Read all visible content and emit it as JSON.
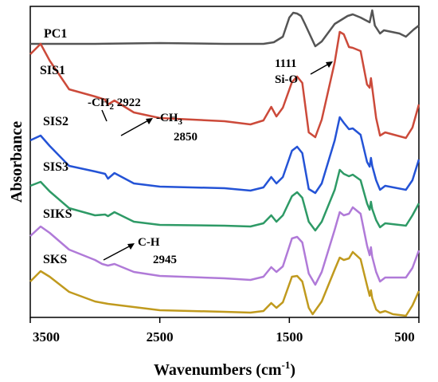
{
  "chart_data": {
    "type": "line",
    "title": "",
    "xlabel": "Wavenumbers (cm",
    "xlabel_sup": "-1",
    "xlabel_end": ")",
    "ylabel": "Absorbance",
    "x_reversed": true,
    "xlim": [
      3500,
      500
    ],
    "x_ticks": [
      3500,
      2500,
      1500,
      500
    ],
    "x_tick_labels": [
      "3500",
      "2500",
      "1500",
      "500"
    ],
    "y_ticks_shown": false,
    "grid": false,
    "series": [
      {
        "name": "PC1",
        "color": "#555555",
        "points": [
          [
            3500,
            47
          ],
          [
            3350,
            47
          ],
          [
            3000,
            47
          ],
          [
            2500,
            46
          ],
          [
            2000,
            47
          ],
          [
            1700,
            47
          ],
          [
            1620,
            45
          ],
          [
            1550,
            38
          ],
          [
            1500,
            14
          ],
          [
            1470,
            8
          ],
          [
            1440,
            9
          ],
          [
            1410,
            12
          ],
          [
            1380,
            22
          ],
          [
            1300,
            50
          ],
          [
            1250,
            44
          ],
          [
            1150,
            22
          ],
          [
            1050,
            12
          ],
          [
            1010,
            10
          ],
          [
            950,
            14
          ],
          [
            880,
            20
          ],
          [
            860,
            5
          ],
          [
            840,
            24
          ],
          [
            800,
            34
          ],
          [
            770,
            30
          ],
          [
            650,
            34
          ],
          [
            600,
            38
          ],
          [
            540,
            29
          ],
          [
            500,
            24
          ]
        ]
      },
      {
        "name": "SIS1",
        "color": "#cc4a3a",
        "points": [
          [
            3500,
            60
          ],
          [
            3420,
            47
          ],
          [
            3350,
            68
          ],
          [
            3200,
            104
          ],
          [
            3000,
            113
          ],
          [
            2922,
            117
          ],
          [
            2900,
            123
          ],
          [
            2850,
            118
          ],
          [
            2700,
            133
          ],
          [
            2500,
            140
          ],
          [
            2000,
            144
          ],
          [
            1800,
            148
          ],
          [
            1700,
            143
          ],
          [
            1640,
            126
          ],
          [
            1600,
            138
          ],
          [
            1550,
            127
          ],
          [
            1480,
            95
          ],
          [
            1440,
            88
          ],
          [
            1400,
            96
          ],
          [
            1350,
            158
          ],
          [
            1300,
            164
          ],
          [
            1250,
            142
          ],
          [
            1150,
            70
          ],
          [
            1111,
            32
          ],
          [
            1080,
            35
          ],
          [
            1040,
            51
          ],
          [
            1010,
            52
          ],
          [
            950,
            56
          ],
          [
            900,
            98
          ],
          [
            880,
            102
          ],
          [
            870,
            90
          ],
          [
            860,
            102
          ],
          [
            830,
            140
          ],
          [
            800,
            162
          ],
          [
            760,
            158
          ],
          [
            600,
            165
          ],
          [
            550,
            152
          ],
          [
            500,
            123
          ]
        ]
      },
      {
        "name": "SIS2",
        "color": "#2453d6",
        "points": [
          [
            3500,
            168
          ],
          [
            3420,
            162
          ],
          [
            3350,
            175
          ],
          [
            3200,
            200
          ],
          [
            3000,
            207
          ],
          [
            2922,
            210
          ],
          [
            2900,
            216
          ],
          [
            2850,
            209
          ],
          [
            2700,
            222
          ],
          [
            2500,
            226
          ],
          [
            2000,
            228
          ],
          [
            1800,
            231
          ],
          [
            1700,
            227
          ],
          [
            1640,
            214
          ],
          [
            1600,
            222
          ],
          [
            1550,
            214
          ],
          [
            1480,
            181
          ],
          [
            1440,
            176
          ],
          [
            1400,
            184
          ],
          [
            1350,
            229
          ],
          [
            1300,
            234
          ],
          [
            1250,
            222
          ],
          [
            1150,
            168
          ],
          [
            1111,
            139
          ],
          [
            1080,
            146
          ],
          [
            1040,
            154
          ],
          [
            1010,
            153
          ],
          [
            950,
            161
          ],
          [
            900,
            195
          ],
          [
            880,
            201
          ],
          [
            870,
            190
          ],
          [
            860,
            200
          ],
          [
            830,
            218
          ],
          [
            800,
            230
          ],
          [
            760,
            225
          ],
          [
            600,
            230
          ],
          [
            550,
            218
          ],
          [
            500,
            192
          ]
        ]
      },
      {
        "name": "SIS3",
        "color": "#2e9a66",
        "points": [
          [
            3500,
            225
          ],
          [
            3420,
            220
          ],
          [
            3350,
            232
          ],
          [
            3200,
            253
          ],
          [
            3000,
            262
          ],
          [
            2922,
            261
          ],
          [
            2900,
            263
          ],
          [
            2850,
            258
          ],
          [
            2700,
            270
          ],
          [
            2500,
            274
          ],
          [
            2000,
            275
          ],
          [
            1800,
            276
          ],
          [
            1700,
            272
          ],
          [
            1640,
            262
          ],
          [
            1600,
            270
          ],
          [
            1550,
            262
          ],
          [
            1480,
            238
          ],
          [
            1440,
            233
          ],
          [
            1400,
            240
          ],
          [
            1350,
            270
          ],
          [
            1300,
            281
          ],
          [
            1250,
            270
          ],
          [
            1150,
            230
          ],
          [
            1111,
            205
          ],
          [
            1080,
            210
          ],
          [
            1040,
            213
          ],
          [
            1010,
            211
          ],
          [
            950,
            218
          ],
          [
            900,
            247
          ],
          [
            880,
            255
          ],
          [
            870,
            245
          ],
          [
            860,
            254
          ],
          [
            830,
            268
          ],
          [
            800,
            277
          ],
          [
            760,
            272
          ],
          [
            600,
            275
          ],
          [
            550,
            262
          ],
          [
            500,
            247
          ]
        ]
      },
      {
        "name": "SIKS",
        "color": "#b07ad8",
        "points": [
          [
            3500,
            288
          ],
          [
            3420,
            276
          ],
          [
            3350,
            284
          ],
          [
            3200,
            305
          ],
          [
            3000,
            318
          ],
          [
            2945,
            323
          ],
          [
            2900,
            325
          ],
          [
            2850,
            323
          ],
          [
            2700,
            333
          ],
          [
            2500,
            338
          ],
          [
            2000,
            341
          ],
          [
            1800,
            343
          ],
          [
            1700,
            339
          ],
          [
            1640,
            327
          ],
          [
            1600,
            333
          ],
          [
            1550,
            326
          ],
          [
            1480,
            291
          ],
          [
            1440,
            289
          ],
          [
            1400,
            296
          ],
          [
            1350,
            335
          ],
          [
            1300,
            349
          ],
          [
            1250,
            333
          ],
          [
            1150,
            280
          ],
          [
            1111,
            258
          ],
          [
            1080,
            262
          ],
          [
            1040,
            260
          ],
          [
            1010,
            252
          ],
          [
            950,
            260
          ],
          [
            900,
            300
          ],
          [
            880,
            312
          ],
          [
            870,
            302
          ],
          [
            860,
            314
          ],
          [
            830,
            333
          ],
          [
            800,
            345
          ],
          [
            760,
            340
          ],
          [
            600,
            340
          ],
          [
            550,
            328
          ],
          [
            500,
            306
          ]
        ]
      },
      {
        "name": "SKS",
        "color": "#c09a1e",
        "points": [
          [
            3500,
            345
          ],
          [
            3420,
            332
          ],
          [
            3350,
            339
          ],
          [
            3200,
            358
          ],
          [
            3000,
            370
          ],
          [
            2900,
            373
          ],
          [
            2700,
            377
          ],
          [
            2500,
            381
          ],
          [
            2000,
            383
          ],
          [
            1800,
            384
          ],
          [
            1700,
            382
          ],
          [
            1640,
            372
          ],
          [
            1600,
            378
          ],
          [
            1550,
            371
          ],
          [
            1480,
            339
          ],
          [
            1440,
            338
          ],
          [
            1400,
            345
          ],
          [
            1350,
            378
          ],
          [
            1320,
            386
          ],
          [
            1250,
            370
          ],
          [
            1150,
            330
          ],
          [
            1111,
            315
          ],
          [
            1080,
            318
          ],
          [
            1040,
            316
          ],
          [
            1010,
            308
          ],
          [
            950,
            317
          ],
          [
            900,
            350
          ],
          [
            880,
            363
          ],
          [
            870,
            356
          ],
          [
            860,
            366
          ],
          [
            830,
            380
          ],
          [
            800,
            384
          ],
          [
            760,
            382
          ],
          [
            700,
            386
          ],
          [
            600,
            388
          ],
          [
            550,
            375
          ],
          [
            500,
            357
          ]
        ]
      }
    ],
    "annotations": {
      "ch2": {
        "prefix": "-CH",
        "sub": "2",
        "value": " 2922"
      },
      "ch3": {
        "prefix": "-CH",
        "sub": "3",
        "value": "2850"
      },
      "sio": {
        "value": "1111",
        "label": "Si-O"
      },
      "ch": {
        "label": "C-H",
        "value": "2945"
      }
    }
  }
}
